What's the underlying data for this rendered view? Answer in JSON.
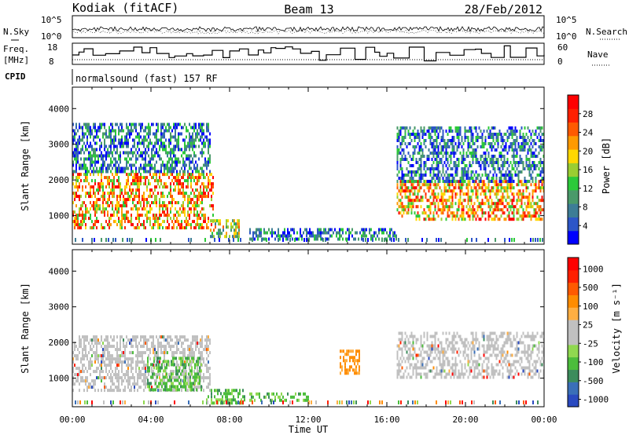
{
  "header": {
    "station": "Kodiak (fitACF)",
    "beam": "Beam 13",
    "date": "28/Feb/2012"
  },
  "noise_panel": {
    "left_label": "N.Sky",
    "right_label": "N.Search",
    "left_ticks": [
      "10^5",
      "10^0"
    ],
    "right_ticks": [
      "10^5",
      "10^0"
    ]
  },
  "freq_panel": {
    "left_label_top": "Freq.",
    "left_label_unit": "[MHz]",
    "left_ticks": [
      "18",
      "8"
    ],
    "right_label": "Nave",
    "right_ticks": [
      "60",
      "0"
    ]
  },
  "cpid": {
    "label": "CPID",
    "text": "normalsound (fast) 157 RF"
  },
  "chart_data": [
    {
      "type": "heatmap",
      "name": "power",
      "ylabel": "Slant Range [km]",
      "xlabel": "Time UT",
      "xlim": [
        0,
        24
      ],
      "ylim": [
        200,
        4600
      ],
      "x_ticks": [
        "00:00",
        "04:00",
        "08:00",
        "12:00",
        "16:00",
        "20:00",
        "00:00"
      ],
      "y_ticks": [
        "1000",
        "2000",
        "3000",
        "4000"
      ],
      "colorbar_label": "Power [dB]",
      "colorbar_ticks": [
        "4",
        "8",
        "12",
        "16",
        "20",
        "24",
        "28"
      ],
      "colorbar_colors": [
        "#0000ff",
        "#2d56c8",
        "#3d7d96",
        "#4a9a6a",
        "#2cc93a",
        "#9acd32",
        "#ffd700",
        "#ff9a00",
        "#ff5a00",
        "#ff2000",
        "#ff0000"
      ],
      "features": [
        {
          "t0": 0.0,
          "t1": 7.2,
          "r0": 700,
          "r1": 2200,
          "level": "high"
        },
        {
          "t0": 0.0,
          "t1": 7.0,
          "r0": 2200,
          "r1": 3600,
          "level": "low"
        },
        {
          "t0": 7.0,
          "t1": 8.5,
          "r0": 400,
          "r1": 900,
          "level": "mid"
        },
        {
          "t0": 9.0,
          "t1": 16.5,
          "r0": 350,
          "r1": 650,
          "level": "low"
        },
        {
          "t0": 16.5,
          "t1": 24.0,
          "r0": 900,
          "r1": 2000,
          "level": "high"
        },
        {
          "t0": 16.5,
          "t1": 24.0,
          "r0": 2000,
          "r1": 3500,
          "level": "low"
        }
      ]
    },
    {
      "type": "heatmap",
      "name": "velocity",
      "ylabel": "Slant Range [km]",
      "xlabel": "Time UT",
      "xlim": [
        0,
        24
      ],
      "ylim": [
        200,
        4600
      ],
      "x_ticks": [
        "00:00",
        "04:00",
        "08:00",
        "12:00",
        "16:00",
        "20:00",
        "00:00"
      ],
      "y_ticks": [
        "1000",
        "2000",
        "3000",
        "4000"
      ],
      "colorbar_label": "Velocity [m s⁻¹]",
      "colorbar_ticks": [
        "1000",
        "500",
        "100",
        "25",
        "-25",
        "-100",
        "-500",
        "-1000"
      ],
      "colorbar_colors": [
        "#2a4ac0",
        "#3a6fb8",
        "#3c8c5c",
        "#4cbd3c",
        "#90d850",
        "#c0c0c0",
        "#c0c0c0",
        "#ffae42",
        "#ff8c00",
        "#ff5a00",
        "#ff2000",
        "#ff0000"
      ],
      "features": [
        {
          "t0": 0.0,
          "t1": 7.0,
          "r0": 700,
          "r1": 2200,
          "level": "ground"
        },
        {
          "t0": 3.8,
          "t1": 6.6,
          "r0": 700,
          "r1": 1600,
          "level": "green"
        },
        {
          "t0": 6.8,
          "t1": 8.8,
          "r0": 300,
          "r1": 700,
          "level": "green"
        },
        {
          "t0": 9.0,
          "t1": 12.0,
          "r0": 400,
          "r1": 600,
          "level": "green"
        },
        {
          "t0": 13.6,
          "t1": 14.6,
          "r0": 1100,
          "r1": 1800,
          "level": "orange"
        },
        {
          "t0": 16.5,
          "t1": 24.0,
          "r0": 1000,
          "r1": 2300,
          "level": "ground"
        }
      ]
    }
  ]
}
